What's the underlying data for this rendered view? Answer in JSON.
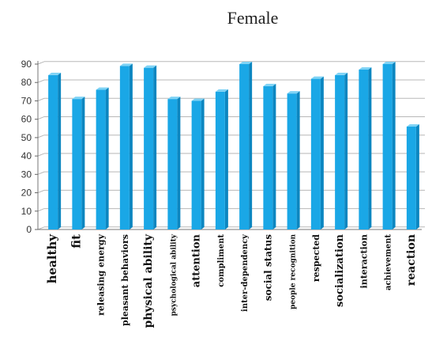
{
  "chart_data": {
    "type": "bar",
    "title": "Female",
    "xlabel": "",
    "ylabel": "",
    "ylim": [
      0,
      90
    ],
    "yticks": [
      0,
      10,
      20,
      30,
      40,
      50,
      60,
      70,
      80,
      90
    ],
    "grid": true,
    "legend": "none",
    "colors": {
      "bar": "#1aa7e6",
      "bar_side": "#0c86c0",
      "bar_top": "#7fd3f5",
      "grid": "#b8b8b8"
    },
    "categories": [
      "healthy",
      "fit",
      "releasing energy",
      "pleasant behaviors",
      "physical ability",
      "psychological ability",
      "attention",
      "compliment",
      "inter-dependency",
      "social status",
      "people recognition",
      "respected",
      "socialization",
      "interaction",
      "achievement",
      "reaction"
    ],
    "values": [
      84,
      71,
      76,
      89,
      88,
      71,
      70,
      75,
      90,
      78,
      74,
      82,
      84,
      87,
      90,
      56
    ]
  }
}
